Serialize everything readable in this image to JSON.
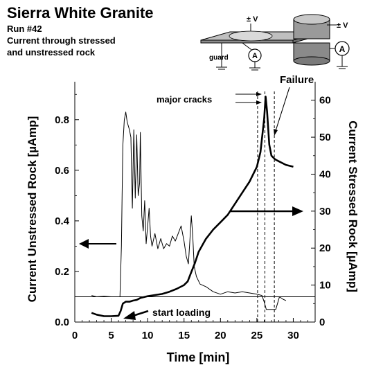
{
  "chart_data": {
    "type": "line",
    "title": "Sierra White Granite",
    "subtitle_lines": [
      "Run #42",
      "Current through stressed",
      "and unstressed rock"
    ],
    "xlabel": "Time [min]",
    "ylabel_left": "Current Unstressed Rock [µAmp]",
    "ylabel_right": "Current Stressed Rock [µAmp]",
    "xlim": [
      0,
      33
    ],
    "ylim_left": [
      0,
      0.95
    ],
    "ylim_right": [
      0,
      65
    ],
    "x_ticks": [
      "0",
      "5",
      "10",
      "15",
      "20",
      "25",
      "30"
    ],
    "y_left_ticks": [
      "0.0",
      "0.2",
      "0.4",
      "0.6",
      "0.8"
    ],
    "y_right_ticks": [
      "0",
      "10",
      "20",
      "30",
      "40",
      "50",
      "60"
    ],
    "baseline_left": 0.1,
    "series": [
      {
        "axis": "left",
        "points": [
          [
            2.3,
            0.105
          ],
          [
            3,
            0.1
          ],
          [
            4,
            0.102
          ],
          [
            5,
            0.1
          ],
          [
            5.8,
            0.1
          ],
          [
            6.2,
            0.1
          ],
          [
            6.4,
            0.3
          ],
          [
            6.5,
            0.5
          ],
          [
            6.6,
            0.7
          ],
          [
            6.8,
            0.8
          ],
          [
            7,
            0.83
          ],
          [
            7.2,
            0.79
          ],
          [
            7.5,
            0.76
          ],
          [
            7.7,
            0.73
          ],
          [
            7.9,
            0.45
          ],
          [
            8.1,
            0.76
          ],
          [
            8.3,
            0.49
          ],
          [
            8.5,
            0.74
          ],
          [
            8.7,
            0.5
          ],
          [
            8.9,
            0.55
          ],
          [
            9,
            0.75
          ],
          [
            9.2,
            0.42
          ],
          [
            9.4,
            0.36
          ],
          [
            9.6,
            0.48
          ],
          [
            9.8,
            0.31
          ],
          [
            10,
            0.38
          ],
          [
            10.2,
            0.45
          ],
          [
            10.4,
            0.34
          ],
          [
            10.6,
            0.3
          ],
          [
            11,
            0.35
          ],
          [
            11.4,
            0.29
          ],
          [
            11.8,
            0.33
          ],
          [
            12.2,
            0.29
          ],
          [
            12.6,
            0.31
          ],
          [
            13,
            0.3
          ],
          [
            13.4,
            0.34
          ],
          [
            13.8,
            0.32
          ],
          [
            14.2,
            0.35
          ],
          [
            14.6,
            0.38
          ],
          [
            15,
            0.32
          ],
          [
            15.3,
            0.26
          ],
          [
            15.6,
            0.23
          ],
          [
            15.8,
            0.32
          ],
          [
            16,
            0.42
          ],
          [
            16.2,
            0.34
          ],
          [
            16.4,
            0.22
          ],
          [
            16.7,
            0.18
          ],
          [
            17.2,
            0.15
          ],
          [
            18,
            0.14
          ],
          [
            19,
            0.12
          ],
          [
            20,
            0.11
          ],
          [
            21,
            0.12
          ],
          [
            22,
            0.115
          ],
          [
            23,
            0.12
          ],
          [
            24,
            0.115
          ],
          [
            25,
            0.11
          ],
          [
            25.7,
            0.105
          ],
          [
            26,
            0.08
          ],
          [
            26.3,
            0.05
          ],
          [
            27,
            0.05
          ],
          [
            27.6,
            0.05
          ],
          [
            27.9,
            0.08
          ],
          [
            28.1,
            0.1
          ],
          [
            28.6,
            0.09
          ],
          [
            29,
            0.085
          ]
        ]
      },
      {
        "axis": "right",
        "points": [
          [
            2.3,
            2.5
          ],
          [
            3,
            2
          ],
          [
            4,
            1.6
          ],
          [
            5,
            1.6
          ],
          [
            6,
            1.7
          ],
          [
            6.3,
            3
          ],
          [
            6.6,
            5
          ],
          [
            7,
            5.5
          ],
          [
            7.5,
            5.5
          ],
          [
            8,
            5.8
          ],
          [
            8.5,
            6
          ],
          [
            9,
            6.5
          ],
          [
            10,
            7
          ],
          [
            11,
            7.3
          ],
          [
            12,
            7.6
          ],
          [
            13,
            8.2
          ],
          [
            14,
            9
          ],
          [
            15,
            10
          ],
          [
            15.5,
            11
          ],
          [
            16,
            13.5
          ],
          [
            16.5,
            16
          ],
          [
            17,
            19
          ],
          [
            18,
            22.5
          ],
          [
            19,
            25
          ],
          [
            20,
            27
          ],
          [
            21,
            29
          ],
          [
            22,
            32
          ],
          [
            23,
            35
          ],
          [
            24,
            38
          ],
          [
            24.5,
            40
          ],
          [
            25,
            42
          ],
          [
            25.5,
            46
          ],
          [
            26,
            55
          ],
          [
            26.2,
            61
          ],
          [
            26.4,
            57
          ],
          [
            26.7,
            48
          ],
          [
            27,
            45
          ],
          [
            27.5,
            44
          ],
          [
            28,
            43.5
          ],
          [
            29,
            42.5
          ],
          [
            30,
            42
          ]
        ]
      }
    ],
    "annotations": {
      "failure": "Failure",
      "major_cracks": "major cracks",
      "start_loading": "start loading",
      "guard": "guard",
      "pm_v_left": "± V",
      "pm_v_right": "± V",
      "ammeter": "A"
    }
  }
}
